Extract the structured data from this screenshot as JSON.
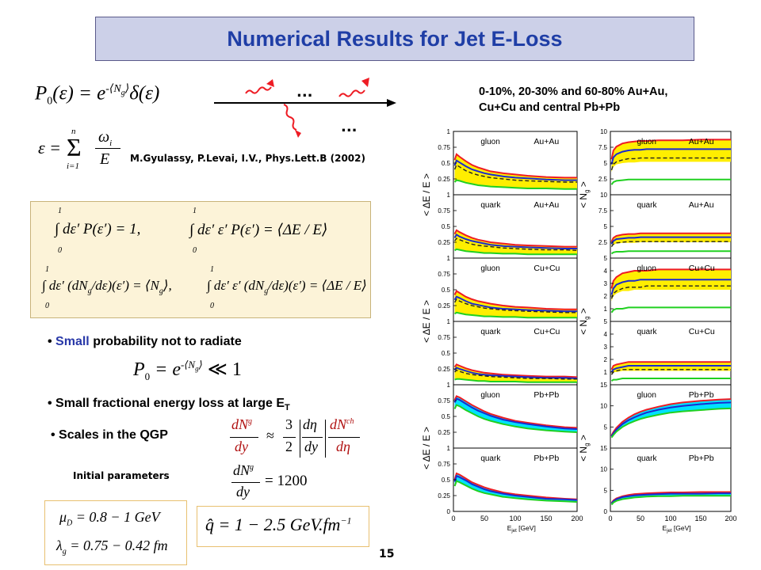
{
  "slide": {
    "title": "Numerical Results for Jet E-Loss",
    "page_number": "15",
    "reference": "M.Gyulassy, P.Levai, I.V., Phys.Lett.B (2002)",
    "dots": "...",
    "header_line1": "0-10%, 20-30% and 60-80% Au+Au,",
    "header_line2": "Cu+Cu and central Pb+Pb",
    "bullet_small_prob_word": "Small",
    "bullet_small_prob_rest": "probability not to radiate",
    "bullet_small_frac": "Small fractional energy loss at large E",
    "bullet_small_frac_sub": "T",
    "bullet_scales": "Scales in the QGP",
    "initial_parameters": "Initial parameters"
  },
  "equations": {
    "p0_lhs": "P",
    "p0_sub": "0",
    "p0_arg": "(ε) = e",
    "p0_exp": "-⟨N",
    "p0_exp_sub": "g",
    "p0_exp_close": "⟩",
    "p0_delta": "δ(ε)",
    "eps_lhs": "ε =",
    "eps_sum": "Σ",
    "eps_sum_top": "n",
    "eps_sum_bot": "i=1",
    "eps_num": "ω",
    "eps_num_sub": "i",
    "eps_den": "E",
    "int1": "∫ dε′ P(ε′) = 1,",
    "int2": "∫ dε′ ε′ P(ε′) = ⟨ΔE / E⟩",
    "int3": "∫ dε′ (dN",
    "int3_sub": "g",
    "int3_rest": "/dε)(ε′) = ⟨N",
    "int3_sub2": "g",
    "int3_end": "⟩,",
    "int4": "∫ dε′ ε′ (dN",
    "int4_sub": "g",
    "int4_rest": "/dε)(ε′) = ⟨ΔE / E⟩",
    "int_lo": "0",
    "int_hi": "1",
    "p0_small": "P",
    "p0_small_sub": "0",
    "p0_small_rest": "= e",
    "p0_small_exp": "-⟨N",
    "p0_small_exp_sub": "g",
    "p0_small_exp_close": "⟩",
    "p0_small_tail": "≪ 1",
    "scales_lhs_num": "dN",
    "scales_lhs_num_sup": "g",
    "scales_lhs_den": "dy",
    "scales_approx": "≈",
    "scales_frac_num": "3",
    "scales_frac_den": "2",
    "scales_jac_num": "dη",
    "scales_jac_den": "dy",
    "scales_rhs_num": "dN",
    "scales_rhs_num_sup": "ch",
    "scales_rhs_den": "dη",
    "dng_num": "dN",
    "dng_num_sup": "g",
    "dng_den": "dy",
    "dng_value": "= 1200",
    "mu_line": "μ",
    "mu_sub": "D",
    "mu_value": "= 0.8 − 1  GeV",
    "lambda_line": "λ",
    "lambda_sub": "g",
    "lambda_value": "= 0.75 − 0.42  fm",
    "qhat_line": "q̂ = 1 − 2.5  GeV.fm",
    "qhat_sup": "−1"
  },
  "chart_data": [
    {
      "type": "area",
      "column": "left",
      "rows": 6,
      "ylabel": "< ΔE / E >",
      "xlabel": "E",
      "xlabel_sub": "jet",
      "xlabel_unit": "[GeV]",
      "x_ticks": [
        "0",
        "50",
        "100",
        "150",
        "200"
      ],
      "y_ticks": [
        "1",
        "0.75",
        "0.5",
        "0.25",
        "0"
      ],
      "xlim": [
        0,
        200
      ],
      "ylim": [
        0,
        1
      ],
      "x": [
        2,
        5,
        10,
        20,
        30,
        40,
        50,
        60,
        80,
        100,
        120,
        150,
        180,
        200
      ],
      "panels": [
        {
          "parton": "gluon",
          "system": "Au+Au",
          "red": [
            0.55,
            0.64,
            0.6,
            0.53,
            0.47,
            0.43,
            0.4,
            0.37,
            0.34,
            0.32,
            0.3,
            0.28,
            0.27,
            0.27
          ],
          "blue": [
            0.46,
            0.54,
            0.51,
            0.45,
            0.4,
            0.37,
            0.34,
            0.32,
            0.29,
            0.27,
            0.26,
            0.24,
            0.23,
            0.23
          ],
          "dash": [
            0.4,
            0.47,
            0.44,
            0.38,
            0.34,
            0.31,
            0.29,
            0.27,
            0.25,
            0.23,
            0.22,
            0.21,
            0.2,
            0.2
          ],
          "green": [
            0.2,
            0.23,
            0.22,
            0.19,
            0.17,
            0.15,
            0.14,
            0.13,
            0.12,
            0.11,
            0.1,
            0.1,
            0.09,
            0.09
          ]
        },
        {
          "parton": "quark",
          "system": "Au+Au",
          "red": [
            0.38,
            0.44,
            0.41,
            0.36,
            0.32,
            0.29,
            0.27,
            0.25,
            0.23,
            0.21,
            0.2,
            0.19,
            0.18,
            0.18
          ],
          "blue": [
            0.32,
            0.37,
            0.34,
            0.3,
            0.27,
            0.25,
            0.23,
            0.21,
            0.19,
            0.18,
            0.17,
            0.16,
            0.15,
            0.15
          ],
          "dash": [
            0.27,
            0.31,
            0.29,
            0.25,
            0.22,
            0.2,
            0.19,
            0.18,
            0.16,
            0.15,
            0.14,
            0.13,
            0.13,
            0.12
          ],
          "green": [
            0.12,
            0.14,
            0.13,
            0.11,
            0.1,
            0.09,
            0.08,
            0.08,
            0.07,
            0.07,
            0.06,
            0.06,
            0.06,
            0.06
          ]
        },
        {
          "parton": "gluon",
          "system": "Cu+Cu",
          "red": [
            0.42,
            0.48,
            0.45,
            0.39,
            0.35,
            0.32,
            0.3,
            0.28,
            0.25,
            0.23,
            0.22,
            0.2,
            0.19,
            0.19
          ],
          "blue": [
            0.34,
            0.39,
            0.37,
            0.32,
            0.28,
            0.26,
            0.24,
            0.22,
            0.2,
            0.19,
            0.18,
            0.17,
            0.16,
            0.16
          ],
          "dash": [
            0.3,
            0.35,
            0.32,
            0.28,
            0.25,
            0.23,
            0.21,
            0.2,
            0.18,
            0.17,
            0.16,
            0.15,
            0.14,
            0.14
          ],
          "green": [
            0.12,
            0.14,
            0.13,
            0.11,
            0.1,
            0.09,
            0.08,
            0.08,
            0.07,
            0.07,
            0.06,
            0.06,
            0.06,
            0.06
          ]
        },
        {
          "parton": "quark",
          "system": "Cu+Cu",
          "red": [
            0.28,
            0.32,
            0.3,
            0.26,
            0.23,
            0.21,
            0.19,
            0.18,
            0.16,
            0.15,
            0.14,
            0.13,
            0.13,
            0.12
          ],
          "blue": [
            0.23,
            0.27,
            0.25,
            0.22,
            0.19,
            0.17,
            0.16,
            0.15,
            0.14,
            0.13,
            0.12,
            0.11,
            0.11,
            0.1
          ],
          "dash": [
            0.2,
            0.23,
            0.21,
            0.18,
            0.16,
            0.15,
            0.14,
            0.13,
            0.12,
            0.11,
            0.1,
            0.1,
            0.09,
            0.09
          ],
          "green": [
            0.08,
            0.09,
            0.09,
            0.08,
            0.07,
            0.06,
            0.06,
            0.05,
            0.05,
            0.05,
            0.04,
            0.04,
            0.04,
            0.04
          ]
        },
        {
          "parton": "gluon",
          "system": "Pb+Pb",
          "red": [
            0.76,
            0.82,
            0.8,
            0.74,
            0.68,
            0.63,
            0.58,
            0.54,
            0.48,
            0.43,
            0.4,
            0.36,
            0.33,
            0.32
          ],
          "blue": [
            0.72,
            0.78,
            0.76,
            0.7,
            0.64,
            0.59,
            0.55,
            0.51,
            0.45,
            0.41,
            0.38,
            0.34,
            0.31,
            0.3
          ],
          "dash": [],
          "green": [
            0.62,
            0.68,
            0.66,
            0.6,
            0.55,
            0.5,
            0.46,
            0.43,
            0.38,
            0.34,
            0.31,
            0.28,
            0.26,
            0.25
          ]
        },
        {
          "parton": "quark",
          "system": "Pb+Pb",
          "red": [
            0.5,
            0.6,
            0.58,
            0.52,
            0.46,
            0.42,
            0.38,
            0.35,
            0.3,
            0.27,
            0.25,
            0.22,
            0.2,
            0.19
          ],
          "blue": [
            0.47,
            0.56,
            0.54,
            0.49,
            0.43,
            0.39,
            0.35,
            0.32,
            0.28,
            0.25,
            0.23,
            0.2,
            0.19,
            0.18
          ],
          "dash": [],
          "green": [
            0.4,
            0.48,
            0.46,
            0.41,
            0.36,
            0.32,
            0.29,
            0.27,
            0.23,
            0.21,
            0.19,
            0.17,
            0.16,
            0.15
          ]
        }
      ]
    },
    {
      "type": "area",
      "column": "right",
      "rows": 6,
      "ylabel": "< N",
      "ylabel_sub": "g",
      "ylabel_end": " >",
      "xlabel": "E",
      "xlabel_sub": "jet",
      "xlabel_unit": "[GeV]",
      "x_ticks": [
        "0",
        "50",
        "100",
        "150",
        "200"
      ],
      "xlim": [
        0,
        200
      ],
      "x": [
        2,
        5,
        10,
        20,
        30,
        40,
        50,
        60,
        80,
        100,
        120,
        150,
        180,
        200
      ],
      "panels": [
        {
          "parton": "gluon",
          "system": "Au+Au",
          "ylim": [
            0,
            10
          ],
          "y_ticks": [
            "10",
            "7.5",
            "5",
            "2.5",
            "0"
          ],
          "red": [
            5.6,
            7.0,
            7.6,
            8.1,
            8.3,
            8.4,
            8.5,
            8.5,
            8.6,
            8.6,
            8.6,
            8.7,
            8.7,
            8.7
          ],
          "yellow_low": [
            3.6,
            4.4,
            4.8,
            5.0,
            5.1,
            5.1,
            5.2,
            5.2,
            5.2,
            5.2,
            5.2,
            5.2,
            5.2,
            5.2
          ],
          "blue": [
            4.8,
            5.9,
            6.4,
            6.8,
            7.0,
            7.1,
            7.1,
            7.2,
            7.2,
            7.2,
            7.2,
            7.2,
            7.2,
            7.2
          ],
          "dash": [
            3.9,
            4.8,
            5.2,
            5.5,
            5.7,
            5.7,
            5.8,
            5.8,
            5.8,
            5.8,
            5.8,
            5.8,
            5.8,
            5.8
          ],
          "green": [
            1.6,
            2.0,
            2.2,
            2.3,
            2.4,
            2.4,
            2.4,
            2.4,
            2.4,
            2.4,
            2.4,
            2.4,
            2.4,
            2.4
          ]
        },
        {
          "parton": "quark",
          "system": "Au+Au",
          "ylim": [
            0,
            10
          ],
          "y_ticks": [
            "10",
            "7.5",
            "5",
            "2.5",
            "0"
          ],
          "red": [
            2.6,
            3.2,
            3.5,
            3.7,
            3.8,
            3.8,
            3.9,
            3.9,
            3.9,
            3.9,
            3.9,
            3.9,
            3.9,
            3.9
          ],
          "yellow_low": [
            1.7,
            2.1,
            2.3,
            2.4,
            2.4,
            2.4,
            2.5,
            2.5,
            2.5,
            2.5,
            2.5,
            2.5,
            2.5,
            2.5
          ],
          "blue": [
            2.2,
            2.7,
            3.0,
            3.1,
            3.2,
            3.2,
            3.3,
            3.3,
            3.3,
            3.3,
            3.3,
            3.3,
            3.3,
            3.3
          ],
          "dash": [
            1.8,
            2.2,
            2.4,
            2.5,
            2.6,
            2.6,
            2.6,
            2.6,
            2.6,
            2.6,
            2.6,
            2.6,
            2.6,
            2.6
          ],
          "green": [
            0.7,
            0.9,
            1.0,
            1.0,
            1.1,
            1.1,
            1.1,
            1.1,
            1.1,
            1.1,
            1.1,
            1.1,
            1.1,
            1.1
          ]
        },
        {
          "parton": "gluon",
          "system": "Cu+Cu",
          "ylim": [
            0,
            5
          ],
          "y_ticks": [
            "5",
            "4",
            "3",
            "2",
            "1",
            "0"
          ],
          "red": [
            2.6,
            3.2,
            3.5,
            3.8,
            3.9,
            4.0,
            4.0,
            4.0,
            4.1,
            4.1,
            4.1,
            4.1,
            4.1,
            4.1
          ],
          "yellow_low": [
            1.6,
            2.0,
            2.2,
            2.4,
            2.4,
            2.5,
            2.5,
            2.5,
            2.5,
            2.5,
            2.5,
            2.5,
            2.5,
            2.5
          ],
          "blue": [
            2.1,
            2.6,
            2.9,
            3.1,
            3.2,
            3.2,
            3.3,
            3.3,
            3.3,
            3.3,
            3.3,
            3.3,
            3.3,
            3.3
          ],
          "dash": [
            1.8,
            2.2,
            2.4,
            2.6,
            2.7,
            2.7,
            2.7,
            2.8,
            2.8,
            2.8,
            2.8,
            2.8,
            2.8,
            2.8
          ],
          "green": [
            0.7,
            0.9,
            1.0,
            1.0,
            1.1,
            1.1,
            1.1,
            1.1,
            1.1,
            1.1,
            1.1,
            1.1,
            1.1,
            1.1
          ]
        },
        {
          "parton": "quark",
          "system": "Cu+Cu",
          "ylim": [
            0,
            5
          ],
          "y_ticks": [
            "5",
            "4",
            "3",
            "2",
            "1",
            "0"
          ],
          "red": [
            1.2,
            1.5,
            1.6,
            1.7,
            1.8,
            1.8,
            1.8,
            1.8,
            1.8,
            1.8,
            1.8,
            1.8,
            1.8,
            1.8
          ],
          "yellow_low": [
            0.8,
            1.0,
            1.0,
            1.1,
            1.1,
            1.1,
            1.1,
            1.1,
            1.1,
            1.1,
            1.1,
            1.1,
            1.1,
            1.1
          ],
          "blue": [
            1.0,
            1.2,
            1.3,
            1.4,
            1.5,
            1.5,
            1.5,
            1.5,
            1.5,
            1.5,
            1.5,
            1.5,
            1.5,
            1.5
          ],
          "dash": [
            0.8,
            1.0,
            1.1,
            1.2,
            1.2,
            1.2,
            1.2,
            1.2,
            1.2,
            1.2,
            1.2,
            1.2,
            1.2,
            1.2
          ],
          "green": [
            0.3,
            0.4,
            0.4,
            0.5,
            0.5,
            0.5,
            0.5,
            0.5,
            0.5,
            0.5,
            0.5,
            0.5,
            0.5,
            0.5
          ]
        },
        {
          "parton": "gluon",
          "system": "Pb+Pb",
          "ylim": [
            0,
            15
          ],
          "y_ticks": [
            "15",
            "10",
            "5",
            "0"
          ],
          "red": [
            3.0,
            3.8,
            4.8,
            6.2,
            7.2,
            8.0,
            8.6,
            9.1,
            9.8,
            10.4,
            10.8,
            11.2,
            11.5,
            11.6
          ],
          "yellow_low": [],
          "blue": [
            2.8,
            3.5,
            4.4,
            5.7,
            6.6,
            7.3,
            7.9,
            8.4,
            9.1,
            9.6,
            10.0,
            10.4,
            10.7,
            10.8
          ],
          "dash": [],
          "green": [
            2.5,
            3.1,
            3.9,
            5.0,
            5.8,
            6.4,
            6.9,
            7.3,
            7.9,
            8.4,
            8.7,
            9.0,
            9.3,
            9.4
          ]
        },
        {
          "parton": "quark",
          "system": "Pb+Pb",
          "ylim": [
            0,
            15
          ],
          "y_ticks": [
            "15",
            "10",
            "5",
            "0"
          ],
          "red": [
            2.0,
            2.6,
            3.1,
            3.6,
            3.9,
            4.1,
            4.2,
            4.3,
            4.4,
            4.5,
            4.5,
            4.6,
            4.6,
            4.6
          ],
          "yellow_low": [],
          "blue": [
            1.9,
            2.4,
            2.9,
            3.4,
            3.6,
            3.8,
            3.9,
            4.0,
            4.1,
            4.2,
            4.2,
            4.2,
            4.3,
            4.3
          ],
          "dash": [],
          "green": [
            1.6,
            2.1,
            2.5,
            2.9,
            3.1,
            3.3,
            3.4,
            3.5,
            3.6,
            3.6,
            3.7,
            3.7,
            3.7,
            3.7
          ]
        }
      ]
    }
  ],
  "colors": {
    "title_text": "#1f3ea6",
    "title_bg": "#ccd0e8",
    "yellow_band": "#ffee00",
    "cyan_band": "#00e0ff",
    "red": "#ee1c24",
    "blue": "#1a2ad0",
    "green": "#20d020",
    "dash": "#222222",
    "small_word": "#2838a8"
  }
}
